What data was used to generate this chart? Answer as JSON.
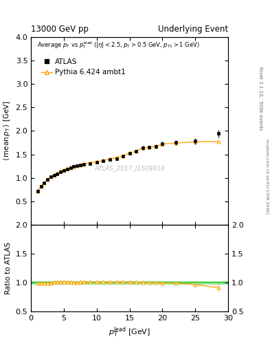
{
  "title_left": "13000 GeV pp",
  "title_right": "Underlying Event",
  "right_label": "Rivet 3.1.10,  500k events",
  "right_label2": "mcplots.cern.ch [arXiv:1306.3436]",
  "watermark": "ATLAS_2017_I1509919",
  "ylabel_main": "⟨ mean p_T ⟩ [GeV]",
  "ylabel_ratio": "Ratio to ATLAS",
  "xlabel": "p_T^lead [GeV]",
  "xlim": [
    0,
    30
  ],
  "ylim_main": [
    0.0,
    4.0
  ],
  "ylim_ratio": [
    0.5,
    2.0
  ],
  "atlas_x": [
    1.0,
    1.5,
    2.0,
    2.5,
    3.0,
    3.5,
    4.0,
    4.5,
    5.0,
    5.5,
    6.0,
    6.5,
    7.0,
    7.5,
    8.0,
    9.0,
    10.0,
    11.0,
    12.0,
    13.0,
    14.0,
    15.0,
    16.0,
    17.0,
    18.0,
    19.0,
    20.0,
    22.0,
    25.0,
    28.5
  ],
  "atlas_y": [
    0.72,
    0.82,
    0.9,
    0.97,
    1.02,
    1.06,
    1.09,
    1.13,
    1.16,
    1.19,
    1.21,
    1.24,
    1.26,
    1.27,
    1.29,
    1.31,
    1.33,
    1.36,
    1.39,
    1.41,
    1.46,
    1.52,
    1.56,
    1.64,
    1.65,
    1.67,
    1.73,
    1.75,
    1.78,
    1.94
  ],
  "atlas_ey": [
    0.02,
    0.02,
    0.02,
    0.02,
    0.02,
    0.02,
    0.02,
    0.02,
    0.02,
    0.02,
    0.02,
    0.02,
    0.02,
    0.02,
    0.02,
    0.02,
    0.02,
    0.02,
    0.02,
    0.02,
    0.03,
    0.03,
    0.03,
    0.04,
    0.04,
    0.04,
    0.04,
    0.05,
    0.06,
    0.08
  ],
  "pythia_x": [
    1.0,
    1.5,
    2.0,
    2.5,
    3.0,
    3.5,
    4.0,
    4.5,
    5.0,
    5.5,
    6.0,
    6.5,
    7.0,
    7.5,
    8.0,
    9.0,
    10.0,
    11.0,
    12.0,
    13.0,
    14.0,
    15.0,
    16.0,
    17.0,
    18.0,
    19.0,
    20.0,
    22.0,
    25.0,
    28.5
  ],
  "pythia_y": [
    0.72,
    0.82,
    0.9,
    0.97,
    1.02,
    1.07,
    1.1,
    1.14,
    1.17,
    1.2,
    1.22,
    1.24,
    1.26,
    1.28,
    1.3,
    1.32,
    1.34,
    1.37,
    1.4,
    1.43,
    1.47,
    1.53,
    1.57,
    1.64,
    1.65,
    1.67,
    1.72,
    1.74,
    1.77,
    1.77
  ],
  "pythia_ey": [
    0.01,
    0.01,
    0.01,
    0.01,
    0.01,
    0.01,
    0.01,
    0.01,
    0.01,
    0.01,
    0.01,
    0.01,
    0.01,
    0.01,
    0.01,
    0.01,
    0.01,
    0.01,
    0.01,
    0.01,
    0.01,
    0.01,
    0.02,
    0.02,
    0.02,
    0.02,
    0.02,
    0.03,
    0.03,
    0.04
  ],
  "ratio_x": [
    1.0,
    1.5,
    2.0,
    2.5,
    3.0,
    3.5,
    4.0,
    4.5,
    5.0,
    5.5,
    6.0,
    6.5,
    7.0,
    7.5,
    8.0,
    9.0,
    10.0,
    11.0,
    12.0,
    13.0,
    14.0,
    15.0,
    16.0,
    17.0,
    18.0,
    19.0,
    20.0,
    22.0,
    25.0,
    28.5
  ],
  "ratio_y": [
    0.993,
    0.993,
    0.993,
    0.993,
    0.995,
    1.01,
    1.01,
    1.01,
    1.01,
    1.01,
    1.01,
    1.0,
    1.0,
    1.01,
    1.01,
    1.007,
    1.007,
    1.007,
    1.007,
    1.013,
    1.008,
    1.007,
    1.007,
    1.003,
    1.0,
    0.997,
    0.99,
    0.994,
    0.966,
    0.912
  ],
  "ratio_ey": [
    0.03,
    0.02,
    0.02,
    0.02,
    0.02,
    0.02,
    0.01,
    0.01,
    0.01,
    0.01,
    0.01,
    0.01,
    0.01,
    0.01,
    0.01,
    0.01,
    0.01,
    0.01,
    0.01,
    0.02,
    0.02,
    0.02,
    0.02,
    0.03,
    0.03,
    0.02,
    0.02,
    0.03,
    0.04,
    0.05
  ],
  "atlas_color": "#000000",
  "pythia_color": "#ffa500",
  "green_band_color": "#33cc33",
  "legend_atlas": "ATLAS",
  "legend_pythia": "Pythia 6.424 ambt1",
  "yticks_main": [
    0.5,
    1.0,
    1.5,
    2.0,
    2.5,
    3.0,
    3.5,
    4.0
  ],
  "yticks_ratio": [
    0.5,
    1.0,
    1.5,
    2.0
  ],
  "xticks": [
    0,
    5,
    10,
    15,
    20,
    25,
    30
  ]
}
